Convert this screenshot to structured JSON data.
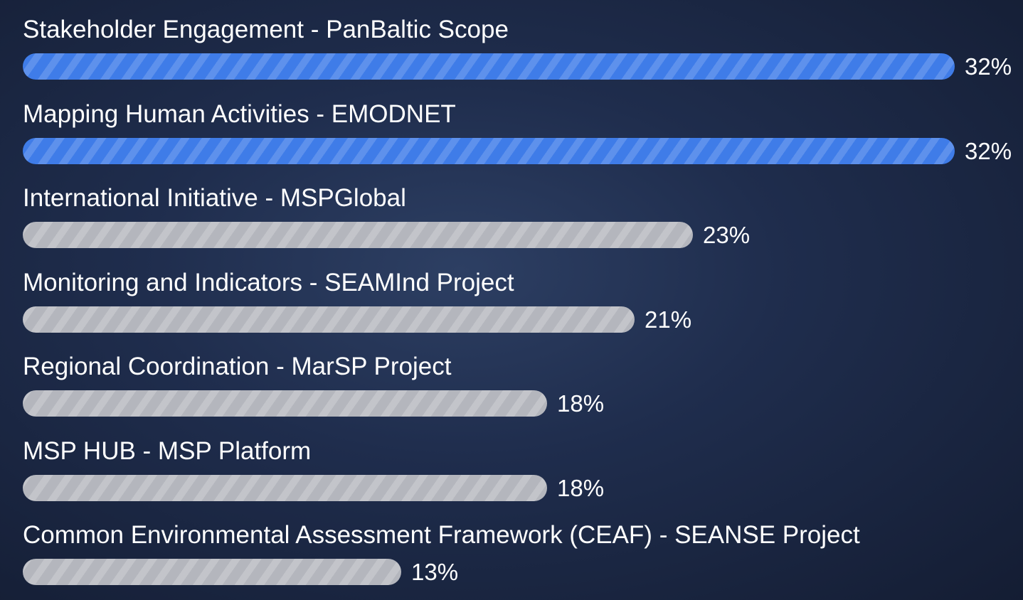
{
  "chart_data": {
    "type": "bar",
    "orientation": "horizontal",
    "categories": [
      "Stakeholder Engagement - PanBaltic Scope",
      "Mapping Human Activities - EMODNET",
      "International Initiative - MSPGlobal",
      "Monitoring and Indicators - SEAMInd Project",
      "Regional Coordination - MarSP Project",
      "MSP HUB - MSP Platform",
      "Common Environmental Assessment Framework (CEAF) - SEANSE Project"
    ],
    "values": [
      32,
      32,
      23,
      21,
      18,
      18,
      13
    ],
    "value_labels": [
      "32%",
      "32%",
      "23%",
      "21%",
      "18%",
      "18%",
      "13%"
    ],
    "unit": "%",
    "title": "",
    "xlabel": "",
    "ylabel": "",
    "grid": false,
    "colors": {
      "leader": "#3f7ce8",
      "other": "#b4b6bd",
      "text": "#ffffff"
    }
  }
}
